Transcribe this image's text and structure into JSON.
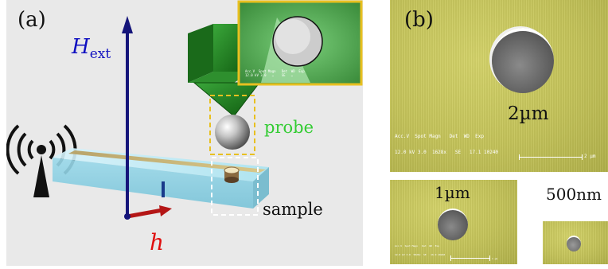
{
  "panel_a": {
    "label": "(a)",
    "h_ext_symbol": "H",
    "h_ext_subscript": "ext",
    "h_symbol": "h",
    "probe_label": "probe",
    "sample_label": "sample",
    "colors": {
      "h_ext": "#1010c0",
      "h": "#e01010",
      "probe": "#33cc33",
      "cantilever": "#1e7a1e",
      "inset_border": "#e8c020"
    },
    "icons": [
      "antenna-icon"
    ],
    "inset_footer": "Acc.V  Spot Magn   Det  WD  Exp\n12.0 kV 3.0   …    SE   …"
  },
  "panel_b": {
    "label": "(b)",
    "main_hole_caption": "2µm",
    "main_sem_footer_line1": "Acc.V  Spot Magn   Det  WD  Exp",
    "main_sem_footer_line2": "12.0 kV 3.0  1628x   SE   17.1 10240",
    "main_scale_text": "2 µm",
    "hole_1um_caption": "1µm",
    "hole_1um_footer_line1": "Acc.V  Spot Magn   Det  WD  Exp",
    "hole_1um_footer_line2": "12.0 kV 3.0  5826x  SE   16.9 10240",
    "hole_1um_scale_text": "1 µm",
    "hole_500nm_caption": "500nm"
  }
}
